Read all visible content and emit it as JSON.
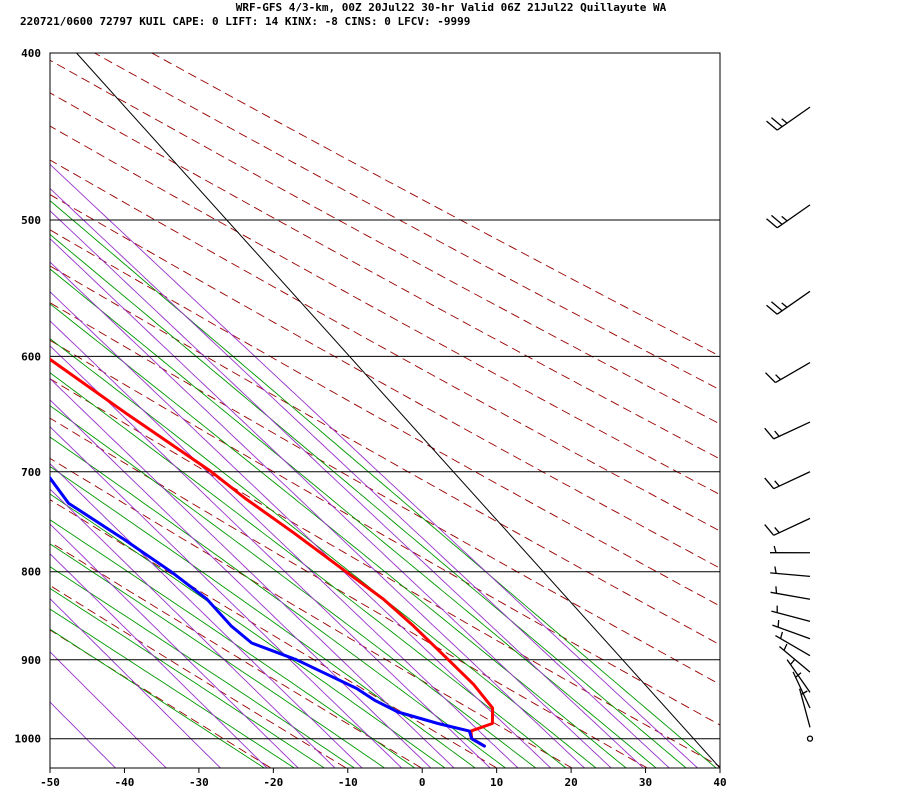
{
  "header": {
    "line1": "WRF-GFS 4/3-km, 00Z 20Jul22 30-hr Valid 06Z 21Jul22 Quillayute WA",
    "line2": "220721/0600 72797  KUIL    CAPE:     0 LIFT:    14 KINX:    -8 CINS:     0 LFCV: -9999"
  },
  "chart_data": {
    "type": "skew-t",
    "title": "WRF-GFS 4/3-km, 00Z 20Jul22 30-hr Valid 06Z 21Jul22 Quillayute WA",
    "station": "KUIL",
    "station_id": "72797",
    "indices": {
      "CAPE": 0,
      "LIFT": 14,
      "KINX": -8,
      "CINS": 0,
      "LFCV": -9999
    },
    "x_ticks": [
      -50,
      -40,
      -30,
      -20,
      -10,
      0,
      10,
      20,
      30,
      40
    ],
    "y_ticks": [
      400,
      500,
      600,
      700,
      800,
      900,
      1000
    ],
    "xlim": [
      -50,
      40
    ],
    "ylim_pressure": [
      1040,
      400
    ],
    "colors": {
      "temperature": "#ff0000",
      "dewpoint": "#0000ff",
      "dry_adiabat": "#990000",
      "moist_adiabat": "#009900",
      "mixing_ratio": "#9933cc",
      "grid": "#000000",
      "wind_barb": "#000000"
    },
    "series": [
      {
        "name": "temperature",
        "points": [
          {
            "p": 1010,
            "v": 11.0
          },
          {
            "p": 1000,
            "v": 10.2
          },
          {
            "p": 990,
            "v": 11.0
          },
          {
            "p": 980,
            "v": 14.8
          },
          {
            "p": 960,
            "v": 16.7
          },
          {
            "p": 930,
            "v": 17.0
          },
          {
            "p": 900,
            "v": 16.6
          },
          {
            "p": 860,
            "v": 16.0
          },
          {
            "p": 830,
            "v": 15.2
          },
          {
            "p": 800,
            "v": 13.5
          },
          {
            "p": 760,
            "v": 11.2
          },
          {
            "p": 725,
            "v": 8.8
          },
          {
            "p": 700,
            "v": 7.5
          },
          {
            "p": 650,
            "v": 3.3
          },
          {
            "p": 600,
            "v": -0.8
          },
          {
            "p": 550,
            "v": -4.8
          },
          {
            "p": 520,
            "v": -8.2
          },
          {
            "p": 500,
            "v": -10.2
          },
          {
            "p": 460,
            "v": -14.0
          },
          {
            "p": 420,
            "v": -18.3
          }
        ]
      },
      {
        "name": "dewpoint",
        "points": [
          {
            "p": 1010,
            "v": 11.0
          },
          {
            "p": 1000,
            "v": 10.2
          },
          {
            "p": 990,
            "v": 10.8
          },
          {
            "p": 980,
            "v": 7.5
          },
          {
            "p": 965,
            "v": 3.5
          },
          {
            "p": 950,
            "v": 1.8
          },
          {
            "p": 935,
            "v": 0.8
          },
          {
            "p": 900,
            "v": -3.8
          },
          {
            "p": 880,
            "v": -7.8
          },
          {
            "p": 860,
            "v": -8.5
          },
          {
            "p": 830,
            "v": -8.5
          },
          {
            "p": 800,
            "v": -10.0
          },
          {
            "p": 765,
            "v": -12.5
          },
          {
            "p": 730,
            "v": -15.5
          },
          {
            "p": 700,
            "v": -14.8
          },
          {
            "p": 645,
            "v": -12.8
          },
          {
            "p": 595,
            "v": -15.5
          },
          {
            "p": 560,
            "v": -21.5
          },
          {
            "p": 540,
            "v": -26.0
          },
          {
            "p": 500,
            "v": -29.8
          },
          {
            "p": 480,
            "v": -31.5
          },
          {
            "p": 420,
            "v": -30.0
          }
        ]
      }
    ],
    "wind_barbs": [
      {
        "p": 1000,
        "dir": 0,
        "spd": 0
      },
      {
        "p": 985,
        "dir": 345,
        "spd": 5
      },
      {
        "p": 960,
        "dir": 335,
        "spd": 5
      },
      {
        "p": 940,
        "dir": 325,
        "spd": 5
      },
      {
        "p": 915,
        "dir": 310,
        "spd": 5
      },
      {
        "p": 895,
        "dir": 300,
        "spd": 5
      },
      {
        "p": 875,
        "dir": 290,
        "spd": 5
      },
      {
        "p": 855,
        "dir": 285,
        "spd": 5
      },
      {
        "p": 830,
        "dir": 280,
        "spd": 5
      },
      {
        "p": 805,
        "dir": 275,
        "spd": 5
      },
      {
        "p": 780,
        "dir": 270,
        "spd": 5
      },
      {
        "p": 745,
        "dir": 245,
        "spd": 15
      },
      {
        "p": 700,
        "dir": 245,
        "spd": 15
      },
      {
        "p": 655,
        "dir": 245,
        "spd": 15
      },
      {
        "p": 605,
        "dir": 240,
        "spd": 15
      },
      {
        "p": 550,
        "dir": 235,
        "spd": 25
      },
      {
        "p": 490,
        "dir": 235,
        "spd": 25
      },
      {
        "p": 430,
        "dir": 235,
        "spd": 25
      }
    ]
  }
}
